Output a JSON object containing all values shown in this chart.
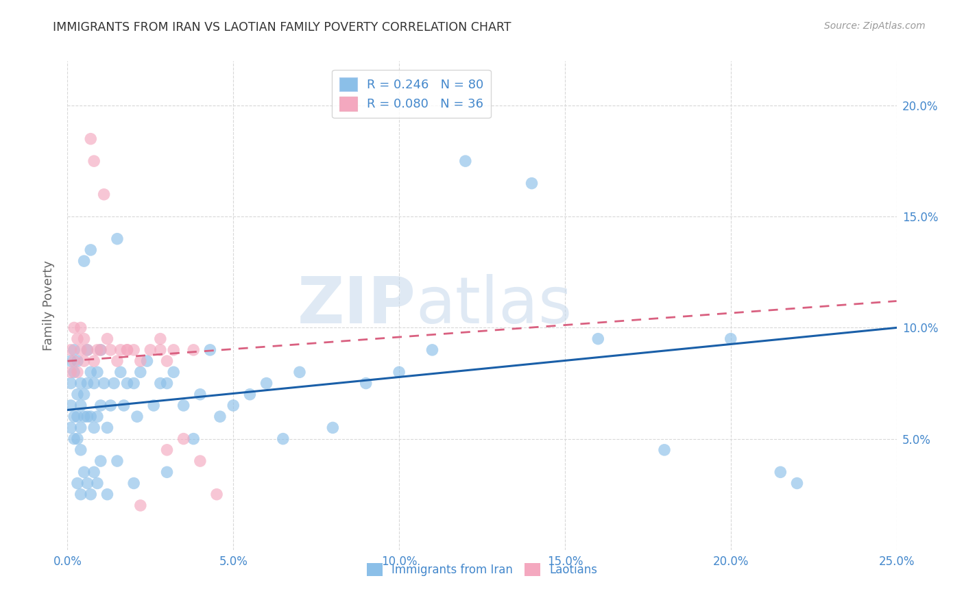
{
  "title": "IMMIGRANTS FROM IRAN VS LAOTIAN FAMILY POVERTY CORRELATION CHART",
  "source": "Source: ZipAtlas.com",
  "ylabel": "Family Poverty",
  "xlim": [
    0.0,
    0.25
  ],
  "ylim": [
    0.0,
    0.22
  ],
  "xticks": [
    0.0,
    0.05,
    0.1,
    0.15,
    0.2,
    0.25
  ],
  "yticks": [
    0.05,
    0.1,
    0.15,
    0.2
  ],
  "xtick_labels": [
    "0.0%",
    "5.0%",
    "10.0%",
    "15.0%",
    "20.0%",
    "25.0%"
  ],
  "ytick_labels_right": [
    "5.0%",
    "10.0%",
    "15.0%",
    "20.0%"
  ],
  "r_iran": 0.246,
  "n_iran": 80,
  "r_laotian": 0.08,
  "n_laotian": 36,
  "iran_color": "#8bbfe8",
  "laotian_color": "#f4a8bf",
  "iran_line_color": "#1a5fa8",
  "laotian_line_color": "#d96080",
  "background_color": "#ffffff",
  "grid_color": "#d8d8d8",
  "title_color": "#333333",
  "axis_label_color": "#666666",
  "tick_color": "#4488cc",
  "watermark_color": "#c5d8ec",
  "iran_line_x0": 0.0,
  "iran_line_y0": 0.063,
  "iran_line_x1": 0.25,
  "iran_line_y1": 0.1,
  "laotian_line_x0": 0.0,
  "laotian_line_y0": 0.085,
  "laotian_line_x1": 0.25,
  "laotian_line_y1": 0.112,
  "iran_x": [
    0.001,
    0.001,
    0.001,
    0.001,
    0.002,
    0.002,
    0.002,
    0.002,
    0.003,
    0.003,
    0.003,
    0.003,
    0.004,
    0.004,
    0.004,
    0.004,
    0.005,
    0.005,
    0.005,
    0.006,
    0.006,
    0.006,
    0.007,
    0.007,
    0.007,
    0.008,
    0.008,
    0.009,
    0.009,
    0.01,
    0.01,
    0.011,
    0.012,
    0.013,
    0.014,
    0.015,
    0.016,
    0.017,
    0.018,
    0.02,
    0.021,
    0.022,
    0.024,
    0.026,
    0.028,
    0.03,
    0.032,
    0.035,
    0.038,
    0.04,
    0.043,
    0.046,
    0.05,
    0.055,
    0.06,
    0.065,
    0.07,
    0.08,
    0.09,
    0.1,
    0.11,
    0.12,
    0.14,
    0.16,
    0.18,
    0.2,
    0.215,
    0.22,
    0.003,
    0.004,
    0.005,
    0.006,
    0.007,
    0.008,
    0.009,
    0.01,
    0.012,
    0.015,
    0.02,
    0.03
  ],
  "iran_y": [
    0.085,
    0.075,
    0.065,
    0.055,
    0.09,
    0.08,
    0.06,
    0.05,
    0.085,
    0.07,
    0.06,
    0.05,
    0.075,
    0.065,
    0.055,
    0.045,
    0.13,
    0.07,
    0.06,
    0.09,
    0.075,
    0.06,
    0.135,
    0.08,
    0.06,
    0.075,
    0.055,
    0.08,
    0.06,
    0.09,
    0.065,
    0.075,
    0.055,
    0.065,
    0.075,
    0.14,
    0.08,
    0.065,
    0.075,
    0.075,
    0.06,
    0.08,
    0.085,
    0.065,
    0.075,
    0.075,
    0.08,
    0.065,
    0.05,
    0.07,
    0.09,
    0.06,
    0.065,
    0.07,
    0.075,
    0.05,
    0.08,
    0.055,
    0.075,
    0.08,
    0.09,
    0.175,
    0.165,
    0.095,
    0.045,
    0.095,
    0.035,
    0.03,
    0.03,
    0.025,
    0.035,
    0.03,
    0.025,
    0.035,
    0.03,
    0.04,
    0.025,
    0.04,
    0.03,
    0.035
  ],
  "laotian_x": [
    0.001,
    0.001,
    0.002,
    0.002,
    0.003,
    0.003,
    0.004,
    0.004,
    0.005,
    0.005,
    0.006,
    0.007,
    0.008,
    0.008,
    0.009,
    0.01,
    0.011,
    0.012,
    0.013,
    0.015,
    0.016,
    0.018,
    0.02,
    0.022,
    0.025,
    0.028,
    0.03,
    0.032,
    0.035,
    0.038,
    0.04,
    0.045,
    0.03,
    0.028,
    0.022,
    0.018
  ],
  "laotian_y": [
    0.09,
    0.08,
    0.1,
    0.085,
    0.095,
    0.08,
    0.1,
    0.09,
    0.095,
    0.085,
    0.09,
    0.185,
    0.175,
    0.085,
    0.09,
    0.09,
    0.16,
    0.095,
    0.09,
    0.085,
    0.09,
    0.09,
    0.09,
    0.085,
    0.09,
    0.09,
    0.045,
    0.09,
    0.05,
    0.09,
    0.04,
    0.025,
    0.085,
    0.095,
    0.02,
    0.09
  ]
}
